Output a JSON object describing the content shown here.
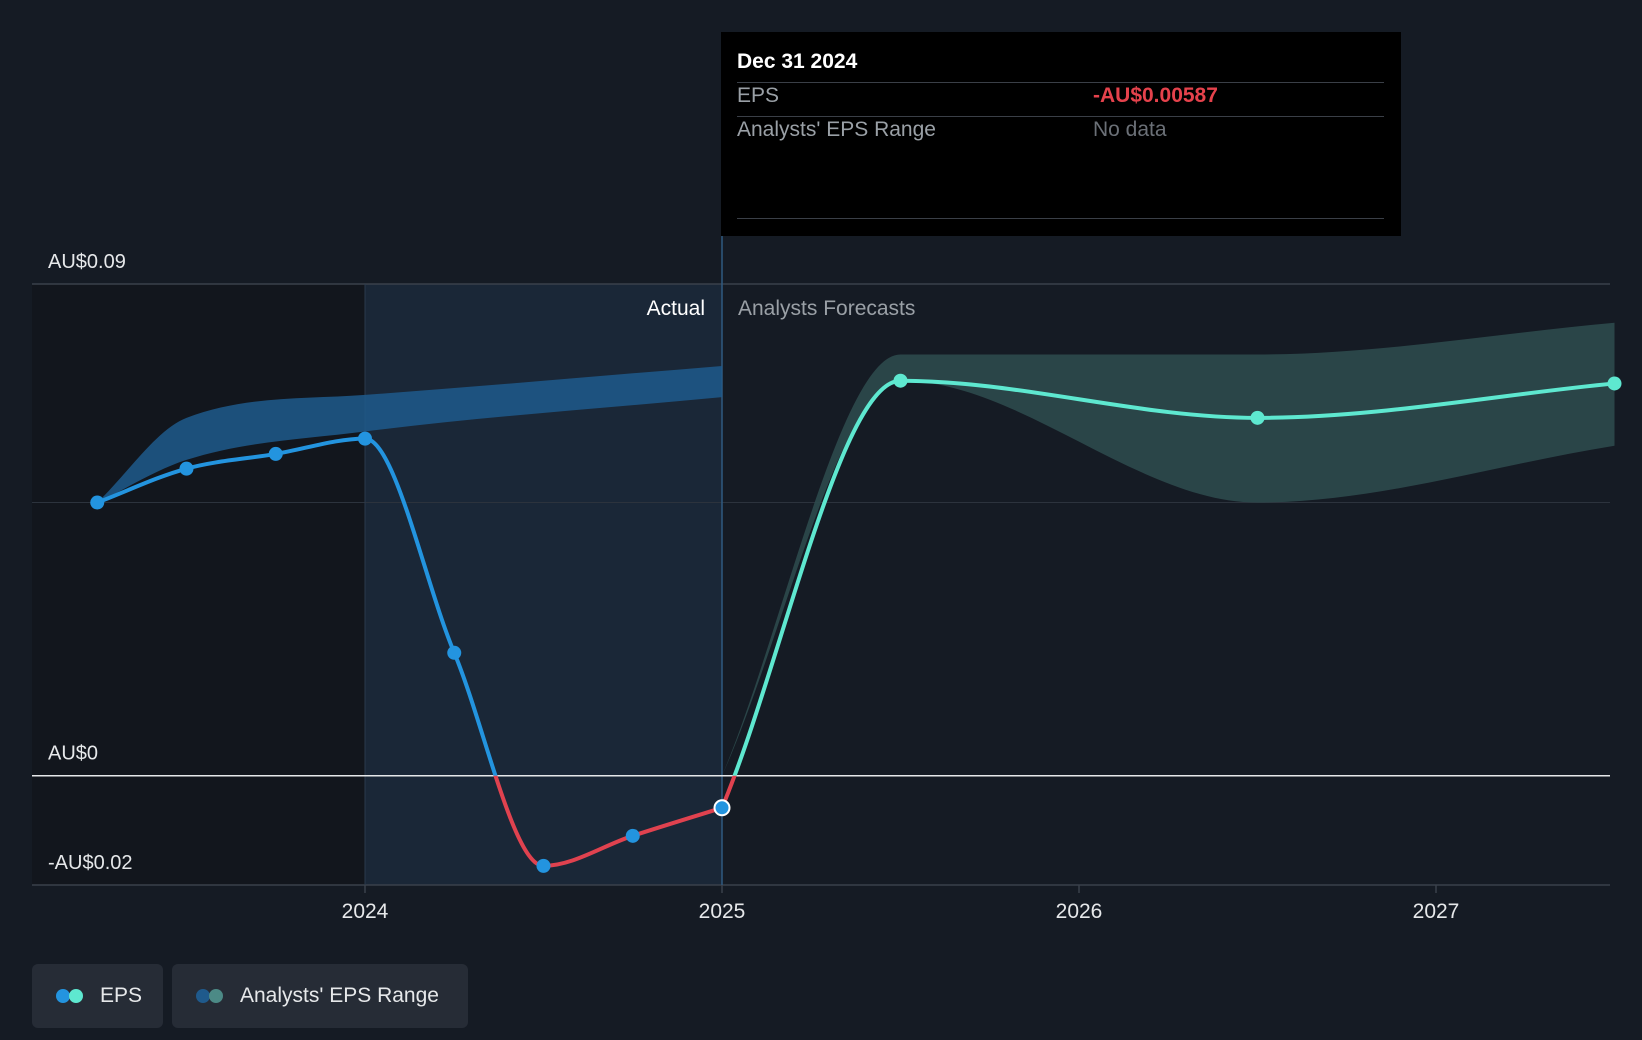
{
  "tooltip": {
    "date": "Dec 31 2024",
    "eps_label": "EPS",
    "eps_value": "-AU$0.00587",
    "range_label": "Analysts' EPS Range",
    "range_value": "No data"
  },
  "legend": {
    "eps": "EPS",
    "range": "Analysts' EPS Range"
  },
  "colors": {
    "background": "#151b24",
    "actual_line": "#2394df",
    "negative_line": "#e0424f",
    "forecast_line": "#5ee8d0",
    "actual_band": "#1f5a8c",
    "forecast_band": "#2c4a4c",
    "tooltip_negative": "#e5424c"
  },
  "chart_data": {
    "type": "line",
    "ylim": [
      -0.02,
      0.09
    ],
    "y_ticks": [
      {
        "value": 0.09,
        "label": "AU$0.09"
      },
      {
        "value": 0,
        "label": "AU$0"
      },
      {
        "value": -0.02,
        "label": "-AU$0.02"
      }
    ],
    "x_ticks": [
      {
        "value": 2024,
        "label": "2024"
      },
      {
        "value": 2025,
        "label": "2025"
      },
      {
        "value": 2026,
        "label": "2026"
      },
      {
        "value": 2027,
        "label": "2027"
      }
    ],
    "xlim": [
      2023.06,
      2027.5
    ],
    "actual_label": "Actual",
    "forecast_label": "Analysts Forecasts",
    "actual_start": 2024.0,
    "actual_end": 2025.0,
    "series": [
      {
        "name": "EPS (Actual)",
        "points": [
          {
            "x": 2023.25,
            "y": 0.05
          },
          {
            "x": 2023.5,
            "y": 0.0562
          },
          {
            "x": 2023.75,
            "y": 0.0589
          },
          {
            "x": 2024.0,
            "y": 0.0617
          },
          {
            "x": 2024.25,
            "y": 0.0225
          },
          {
            "x": 2024.5,
            "y": -0.0165
          },
          {
            "x": 2024.75,
            "y": -0.011
          },
          {
            "x": 2025.0,
            "y": -0.00587
          }
        ]
      },
      {
        "name": "EPS (Forecast)",
        "points": [
          {
            "x": 2025.0,
            "y": -0.00587
          },
          {
            "x": 2025.5,
            "y": 0.0723
          },
          {
            "x": 2026.5,
            "y": 0.0655
          },
          {
            "x": 2027.5,
            "y": 0.0718
          }
        ]
      }
    ],
    "ranges": [
      {
        "name": "Analysts' EPS Range (history)",
        "points": [
          {
            "x": 2023.25,
            "y_low": 0.05,
            "y_high": 0.05
          },
          {
            "x": 2023.5,
            "y_low": 0.0578,
            "y_high": 0.0655
          },
          {
            "x": 2024.0,
            "y_low": 0.063,
            "y_high": 0.0697
          },
          {
            "x": 2025.0,
            "y_low": 0.0693,
            "y_high": 0.075
          }
        ]
      },
      {
        "name": "Analysts' EPS Range (forecast)",
        "points": [
          {
            "x": 2025.0,
            "y_low": 0.0,
            "y_high": 0.0
          },
          {
            "x": 2025.5,
            "y_low": 0.0723,
            "y_high": 0.0771
          },
          {
            "x": 2026.5,
            "y_low": 0.05,
            "y_high": 0.0771
          },
          {
            "x": 2027.5,
            "y_low": 0.0604,
            "y_high": 0.0829
          }
        ]
      }
    ],
    "highlighted_point": {
      "x": 2025.0,
      "y": -0.00587
    }
  }
}
